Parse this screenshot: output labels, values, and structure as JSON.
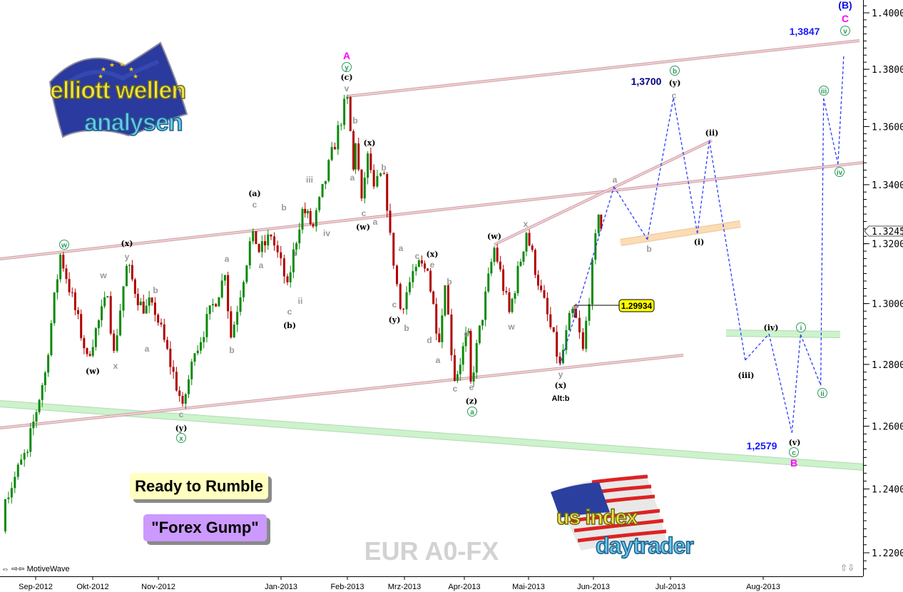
{
  "app": {
    "name": "MotiveWave",
    "nav_icons": [
      "double-arrow-icon",
      "collapse-arrows-icon"
    ]
  },
  "symbol": "EUR A0-FX",
  "notes": {
    "rumble": "Ready to Rumble",
    "gump": "\"Forex Gump\""
  },
  "logos": {
    "elliott": {
      "line1": "elliott wellen",
      "line2": "analysen"
    },
    "usindex": {
      "line1": "us index",
      "line2": "daytrader"
    }
  },
  "colors": {
    "up_candle": "#0a8a0a",
    "down_candle": "#b00000",
    "projection": "#2a3cff",
    "channel": "#e8b8bc",
    "band_green": "#c8f0c8",
    "band_orange": "#fbd9b0",
    "price_box": "#ffff00"
  },
  "chart_data": {
    "type": "candlestick",
    "title": "",
    "y_scale": "log",
    "ylim": [
      1.215,
      1.405
    ],
    "y_ticks": [
      "1.40000",
      "1.38000",
      "1.36000",
      "1.34000",
      "1.32000",
      "1.30000",
      "1.28000",
      "1.26000",
      "1.24000",
      "1.22000"
    ],
    "x_ticks": [
      {
        "label": "Sep-2012",
        "date": "2012-09-01"
      },
      {
        "label": "Okt-2012",
        "date": "2012-10-01"
      },
      {
        "label": "Nov-2012",
        "date": "2012-11-01"
      },
      {
        "label": "Jan-2013",
        "date": "2013-01-01"
      },
      {
        "label": "Feb-2013",
        "date": "2013-02-01"
      },
      {
        "label": "Mrz-2013",
        "date": "2013-03-01"
      },
      {
        "label": "Apr-2013",
        "date": "2013-04-01"
      },
      {
        "label": "Mai-2013",
        "date": "2013-05-01"
      },
      {
        "label": "Jun-2013",
        "date": "2013-06-01"
      },
      {
        "label": "Jul-2013",
        "date": "2013-07-01"
      },
      {
        "label": "Aug-2013",
        "date": "2013-08-01"
      }
    ],
    "last_price": "1.32458",
    "marked_price": "1.29934",
    "price_swings": [
      [
        "2012-08-15",
        1.2267
      ],
      [
        "2012-08-17",
        1.2368
      ],
      [
        "2012-08-28",
        1.2526
      ],
      [
        "2012-09-06",
        1.2779
      ],
      [
        "2012-09-14",
        1.3168
      ],
      [
        "2012-09-28",
        1.2825
      ],
      [
        "2012-10-08",
        1.3025
      ],
      [
        "2012-10-11",
        1.2837
      ],
      [
        "2012-10-17",
        1.3132
      ],
      [
        "2012-10-25",
        1.2966
      ],
      [
        "2012-10-29",
        1.3013
      ],
      [
        "2012-11-13",
        1.2663
      ],
      [
        "2012-11-19",
        1.2837
      ],
      [
        "2012-12-04",
        1.3096
      ],
      [
        "2012-12-07",
        1.2884
      ],
      [
        "2012-12-18",
        1.3252
      ],
      [
        "2012-12-21",
        1.3168
      ],
      [
        "2012-12-27",
        1.3228
      ],
      [
        "2013-01-04",
        1.3061
      ],
      [
        "2013-01-11",
        1.3324
      ],
      [
        "2013-01-16",
        1.3252
      ],
      [
        "2013-02-01",
        1.3711
      ],
      [
        "2013-02-04",
        1.3446
      ],
      [
        "2013-02-05",
        1.3544
      ],
      [
        "2013-02-08",
        1.3344
      ],
      [
        "2013-02-11",
        1.3515
      ],
      [
        "2013-02-14",
        1.3385
      ],
      [
        "2013-02-19",
        1.3446
      ],
      [
        "2013-02-22",
        1.3228
      ],
      [
        "2013-02-27",
        1.2978
      ],
      [
        "2013-03-07",
        1.3132
      ],
      [
        "2013-03-13",
        1.3108
      ],
      [
        "2013-03-19",
        1.2872
      ],
      [
        "2013-03-22",
        1.3061
      ],
      [
        "2013-03-27",
        1.2744
      ],
      [
        "2013-04-03",
        1.2919
      ],
      [
        "2013-04-04",
        1.2737
      ],
      [
        "2013-04-15",
        1.3192
      ],
      [
        "2013-04-22",
        1.2966
      ],
      [
        "2013-04-30",
        1.324
      ],
      [
        "2013-05-07",
        1.3037
      ],
      [
        "2013-05-16",
        1.2797
      ],
      [
        "2013-05-22",
        1.299
      ],
      [
        "2013-05-27",
        1.2844
      ],
      [
        "2013-06-03",
        1.33
      ],
      [
        "2013-06-04",
        1.3246
      ]
    ],
    "projection": [
      [
        "2013-05-16",
        1.2797
      ],
      [
        "2013-06-09",
        1.3393
      ],
      [
        "2013-06-22",
        1.3214
      ],
      [
        "2013-07-02",
        1.37
      ],
      [
        "2013-07-10",
        1.3235
      ],
      [
        "2013-07-14",
        1.3552
      ],
      [
        "2013-07-26",
        1.2814
      ],
      [
        "2013-08-03",
        1.29
      ],
      [
        "2013-08-11",
        1.2579
      ],
      [
        "2013-08-14",
        1.2898
      ],
      [
        "2013-08-21",
        1.2732
      ],
      [
        "2013-08-22",
        1.3698
      ],
      [
        "2013-08-27",
        1.3471
      ],
      [
        "2013-08-29",
        1.3847
      ]
    ],
    "targets": [
      "1,3847",
      "1,3700",
      "1,2579"
    ],
    "alt_label": "Alt:b",
    "wave_labels": [
      {
        "text": "w",
        "style": "green"
      },
      {
        "text": "x",
        "style": "green"
      },
      {
        "text": "y",
        "style": "green"
      },
      {
        "text": "a",
        "style": "green"
      },
      {
        "text": "b",
        "style": "green"
      },
      {
        "text": "v",
        "style": "green"
      },
      {
        "text": "iii",
        "style": "green"
      },
      {
        "text": "iv",
        "style": "green"
      },
      {
        "text": "c",
        "style": "green"
      },
      {
        "text": "i",
        "style": "green"
      },
      {
        "text": "ii",
        "style": "green"
      },
      {
        "text": "(x)",
        "style": "black"
      },
      {
        "text": "(w)",
        "style": "black"
      },
      {
        "text": "(y)",
        "style": "black"
      },
      {
        "text": "(a)",
        "style": "black"
      },
      {
        "text": "(b)",
        "style": "black"
      },
      {
        "text": "(c)",
        "style": "black"
      },
      {
        "text": "(x)",
        "style": "black"
      },
      {
        "text": "(w)",
        "style": "black"
      },
      {
        "text": "(y)",
        "style": "black"
      },
      {
        "text": "(x)",
        "style": "black"
      },
      {
        "text": "(z)",
        "style": "black"
      },
      {
        "text": "(w)",
        "style": "black"
      },
      {
        "text": "(x)",
        "style": "black"
      },
      {
        "text": "(y)",
        "style": "black"
      },
      {
        "text": "(ii)",
        "style": "black"
      },
      {
        "text": "(i)",
        "style": "black"
      },
      {
        "text": "(iii)",
        "style": "black"
      },
      {
        "text": "(iv)",
        "style": "black"
      },
      {
        "text": "(v)",
        "style": "black"
      },
      {
        "text": "w",
        "style": "gray"
      },
      {
        "text": "x",
        "style": "gray"
      },
      {
        "text": "y",
        "style": "gray"
      },
      {
        "text": "a",
        "style": "gray"
      },
      {
        "text": "b",
        "style": "gray"
      },
      {
        "text": "c",
        "style": "gray"
      },
      {
        "text": "b",
        "style": "gray"
      },
      {
        "text": "a",
        "style": "gray"
      },
      {
        "text": "c",
        "style": "gray"
      },
      {
        "text": "a",
        "style": "gray"
      },
      {
        "text": "b",
        "style": "gray"
      },
      {
        "text": "i",
        "style": "gray"
      },
      {
        "text": "ii",
        "style": "gray"
      },
      {
        "text": "c",
        "style": "gray"
      },
      {
        "text": "iii",
        "style": "gray"
      },
      {
        "text": "iv",
        "style": "gray"
      },
      {
        "text": "v",
        "style": "gray"
      },
      {
        "text": "b",
        "style": "gray"
      },
      {
        "text": "a",
        "style": "gray"
      },
      {
        "text": "c",
        "style": "gray"
      },
      {
        "text": "a",
        "style": "gray"
      },
      {
        "text": "b",
        "style": "gray"
      },
      {
        "text": "a",
        "style": "gray"
      },
      {
        "text": "c",
        "style": "gray"
      },
      {
        "text": "b",
        "style": "gray"
      },
      {
        "text": "c",
        "style": "gray"
      },
      {
        "text": "e",
        "style": "gray"
      },
      {
        "text": "b",
        "style": "gray"
      },
      {
        "text": "d",
        "style": "gray"
      },
      {
        "text": "a",
        "style": "gray"
      },
      {
        "text": "d",
        "style": "gray"
      },
      {
        "text": "c",
        "style": "gray"
      },
      {
        "text": "e",
        "style": "gray"
      },
      {
        "text": "x",
        "style": "gray"
      },
      {
        "text": "w",
        "style": "gray"
      },
      {
        "text": "y",
        "style": "gray"
      },
      {
        "text": "a",
        "style": "gray"
      },
      {
        "text": "b",
        "style": "gray"
      },
      {
        "text": "c",
        "style": "gray"
      },
      {
        "text": "A",
        "style": "magenta"
      },
      {
        "text": "C",
        "style": "magenta"
      },
      {
        "text": "B",
        "style": "magenta"
      },
      {
        "text": "(B)",
        "style": "blue"
      }
    ]
  }
}
